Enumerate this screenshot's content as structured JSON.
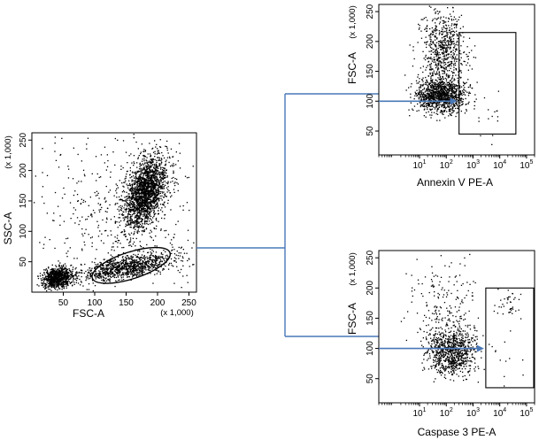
{
  "chart_data": [
    {
      "type": "scatter",
      "xlabel": "FSC-A",
      "ylabel": "SSC-A",
      "x_multiplier": "(x 1,000)",
      "y_multiplier": "(x 1,000)",
      "xlim": [
        0,
        262
      ],
      "ylim": [
        0,
        262
      ],
      "x_ticks": [
        50,
        100,
        150,
        200,
        250
      ],
      "y_ticks": [
        50,
        100,
        150,
        200,
        250
      ],
      "x_tick_labels": [
        "50",
        "100",
        "150",
        "200",
        "250"
      ],
      "y_tick_labels": [
        "50",
        "100",
        "150",
        "200",
        "250"
      ],
      "populations": [
        {
          "cx": 180,
          "cy": 165,
          "sx": 17,
          "sy": 30,
          "rho": 0.45,
          "n": 2000
        },
        {
          "cx": 150,
          "cy": 42,
          "sx": 38,
          "sy": 11,
          "rho": 0.6,
          "n": 1000
        },
        {
          "cx": 40,
          "cy": 25,
          "sx": 11,
          "sy": 8,
          "rho": 0.2,
          "n": 900
        },
        {
          "cx": 140,
          "cy": 130,
          "sx": 70,
          "sy": 70,
          "rho": 0,
          "n": 520
        }
      ],
      "gate": {
        "shape": "ellipse",
        "cx": 158,
        "cy": 44,
        "rx": 65,
        "ry": 22,
        "angle_deg": 18
      }
    },
    {
      "type": "scatter",
      "xlabel": "Annexin V PE-A",
      "ylabel": "FSC-A",
      "x_scale": "log",
      "y_multiplier": "(x 1,000)",
      "xlim": [
        0.3,
        200000
      ],
      "ylim": [
        10,
        262
      ],
      "x_ticks": [
        10,
        100,
        1000,
        10000,
        100000
      ],
      "x_tick_labels": [
        {
          "base": "10",
          "exp": "1"
        },
        {
          "base": "10",
          "exp": "2"
        },
        {
          "base": "10",
          "exp": "3"
        },
        {
          "base": "10",
          "exp": "4"
        },
        {
          "base": "10",
          "exp": "5"
        }
      ],
      "y_ticks": [
        50,
        100,
        150,
        200,
        250
      ],
      "y_tick_labels": [
        "50",
        "100",
        "150",
        "200",
        "250"
      ],
      "populations": [
        {
          "cx": 60,
          "cy": 110,
          "sdex": 0.45,
          "sy": 14,
          "n": 1100
        },
        {
          "cx": 70,
          "cy": 185,
          "sdex": 0.42,
          "sy": 32,
          "n": 650
        },
        {
          "cx": 2000,
          "cy": 95,
          "sdex": 0.55,
          "sy": 30,
          "n": 26
        }
      ],
      "gate": {
        "shape": "rect",
        "x0": 300,
        "x1": 40000,
        "y0": 45,
        "y1": 215
      },
      "arrow_y": 100
    },
    {
      "type": "scatter",
      "xlabel": "Caspase 3 PE-A",
      "ylabel": "FSC-A",
      "x_scale": "log",
      "y_multiplier": "(x 1,000)",
      "xlim": [
        0.3,
        200000
      ],
      "ylim": [
        10,
        262
      ],
      "x_ticks": [
        10,
        100,
        1000,
        10000,
        100000
      ],
      "x_tick_labels": [
        {
          "base": "10",
          "exp": "1"
        },
        {
          "base": "10",
          "exp": "2"
        },
        {
          "base": "10",
          "exp": "3"
        },
        {
          "base": "10",
          "exp": "4"
        },
        {
          "base": "10",
          "exp": "5"
        }
      ],
      "y_ticks": [
        50,
        100,
        150,
        200,
        250
      ],
      "y_tick_labels": [
        "50",
        "100",
        "150",
        "200",
        "250"
      ],
      "populations": [
        {
          "cx": 150,
          "cy": 95,
          "sdex": 0.45,
          "sy": 18,
          "n": 850
        },
        {
          "cx": 80,
          "cy": 165,
          "sdex": 0.6,
          "sy": 40,
          "n": 230
        },
        {
          "cx": 20000,
          "cy": 170,
          "sdex": 0.28,
          "sy": 14,
          "n": 40
        },
        {
          "cx": 15000,
          "cy": 80,
          "sdex": 0.3,
          "sy": 20,
          "n": 10
        }
      ],
      "gate": {
        "shape": "rect",
        "x0": 3000,
        "x1": 200000,
        "y0": 35,
        "y1": 200
      },
      "arrow_y": 100
    }
  ],
  "colors": {
    "connector": "#4a78b8",
    "dots": "#000000"
  }
}
